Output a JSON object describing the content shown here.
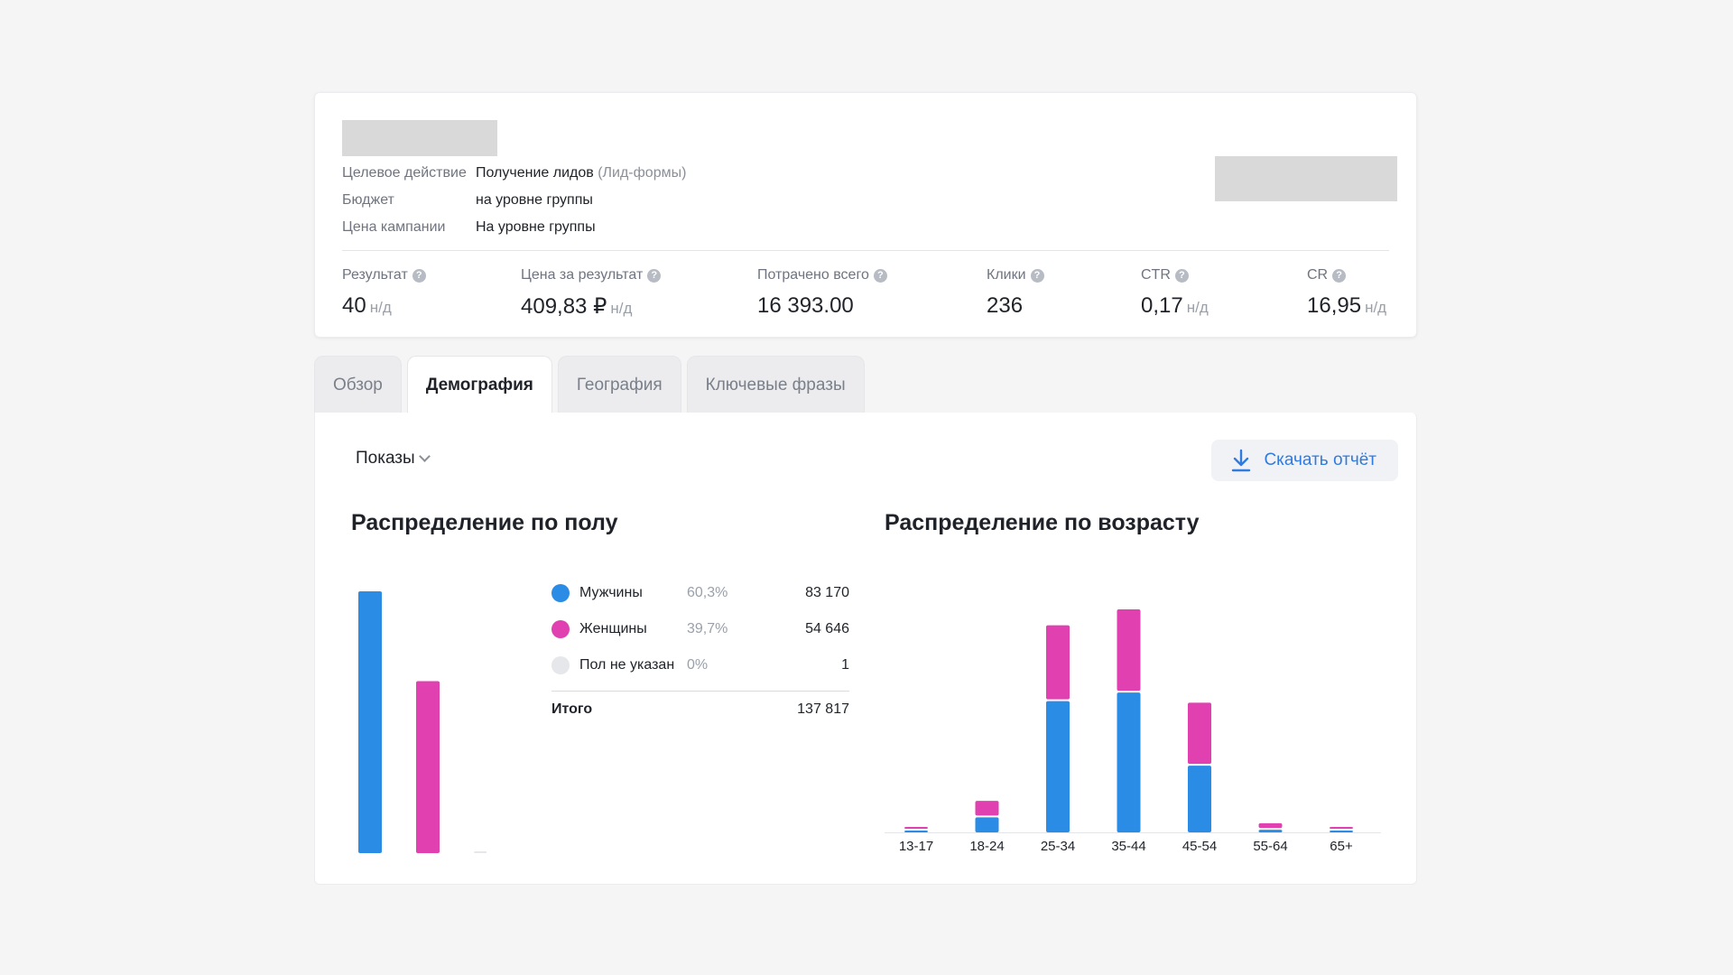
{
  "campaign": {
    "info": [
      {
        "label": "Целевое действие",
        "value": "Получение лидов",
        "extra": "(Лид-формы)"
      },
      {
        "label": "Бюджет",
        "value": "на уровне группы",
        "extra": ""
      },
      {
        "label": "Цена кампании",
        "value": "На уровне группы",
        "extra": ""
      }
    ],
    "metrics": [
      {
        "label": "Результат",
        "value": "40",
        "suffix": "н/д"
      },
      {
        "label": "Цена за результат",
        "value": "409,83 ₽",
        "suffix": "н/д"
      },
      {
        "label": "Потрачено всего",
        "value": "16 393.00",
        "suffix": ""
      },
      {
        "label": "Клики",
        "value": "236",
        "suffix": ""
      },
      {
        "label": "CTR",
        "value": "0,17",
        "suffix": "н/д"
      },
      {
        "label": "CR",
        "value": "16,95",
        "suffix": "н/д"
      }
    ]
  },
  "tabs": [
    {
      "label": "Обзор",
      "active": false
    },
    {
      "label": "Демография",
      "active": true
    },
    {
      "label": "География",
      "active": false
    },
    {
      "label": "Ключевые фразы",
      "active": false
    }
  ],
  "controls": {
    "metric_dropdown": "Показы",
    "download_label": "Скачать отчёт"
  },
  "colors": {
    "male": "#2b8ce6",
    "female": "#e040b0",
    "unknown": "#e6e7ea",
    "accent": "#2f7be0"
  },
  "gender": {
    "title": "Распределение по полу",
    "rows": [
      {
        "label": "Мужчины",
        "pct": "60,3%",
        "value": "83 170"
      },
      {
        "label": "Женщины",
        "pct": "39,7%",
        "value": "54 646"
      },
      {
        "label": "Пол не указан",
        "pct": "0%",
        "value": "1"
      }
    ],
    "total_label": "Итого",
    "total_value": "137 817"
  },
  "age": {
    "title": "Распределение по возрасту"
  },
  "chart_data": [
    {
      "type": "bar",
      "categories": [
        "Мужчины",
        "Женщины",
        "Пол не указан"
      ],
      "values": [
        83170,
        54646,
        1
      ]
    },
    {
      "type": "bar",
      "stacked": true,
      "categories": [
        "13-17",
        "18-24",
        "25-34",
        "35-44",
        "45-54",
        "55-64",
        "65+"
      ],
      "series": [
        {
          "name": "Мужчины",
          "values": [
            300,
            3500,
            30500,
            32500,
            15500,
            600,
            350
          ]
        },
        {
          "name": "Женщины",
          "values": [
            100,
            3400,
            17200,
            18900,
            14200,
            1100,
            100
          ]
        }
      ]
    }
  ]
}
